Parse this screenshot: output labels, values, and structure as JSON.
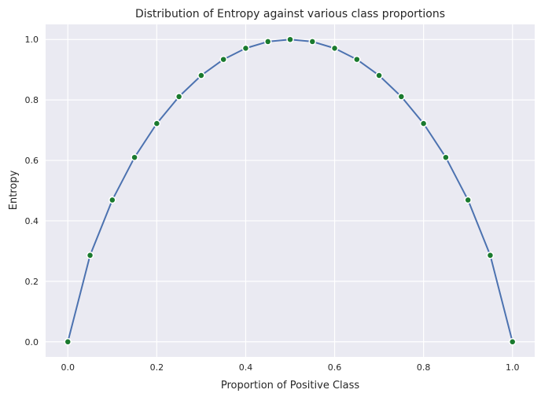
{
  "chart_data": {
    "type": "line",
    "title": "Distribution of Entropy against various class proportions",
    "xlabel": "Proportion of Positive Class",
    "ylabel": "Entropy",
    "xlim": [
      -0.05,
      1.05
    ],
    "ylim": [
      -0.05,
      1.05
    ],
    "xticks": [
      0.0,
      0.2,
      0.4,
      0.6,
      0.8,
      1.0
    ],
    "xtick_labels": [
      "0.0",
      "0.2",
      "0.4",
      "0.6",
      "0.8",
      "1.0"
    ],
    "yticks": [
      0.0,
      0.2,
      0.4,
      0.6,
      0.8,
      1.0
    ],
    "ytick_labels": [
      "0.0",
      "0.2",
      "0.4",
      "0.6",
      "0.8",
      "1.0"
    ],
    "grid": true,
    "legend": "none",
    "colors": {
      "background": "#eaeaf2",
      "grid": "#ffffff",
      "line": "#4c72b0",
      "marker": "#1a7a2e",
      "marker_edge": "#ffffff"
    },
    "series": [
      {
        "x": [
          0.0,
          0.05,
          0.1,
          0.15,
          0.2,
          0.25,
          0.3,
          0.35,
          0.4,
          0.45,
          0.5,
          0.55,
          0.6,
          0.65,
          0.7,
          0.75,
          0.8,
          0.85,
          0.9,
          0.95,
          1.0
        ],
        "y": [
          0.0,
          0.286,
          0.469,
          0.61,
          0.722,
          0.811,
          0.881,
          0.934,
          0.971,
          0.993,
          1.0,
          0.993,
          0.971,
          0.934,
          0.881,
          0.811,
          0.722,
          0.61,
          0.469,
          0.286,
          0.0
        ]
      }
    ]
  }
}
